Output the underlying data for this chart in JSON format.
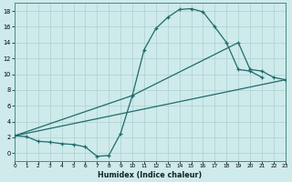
{
  "xlabel": "Humidex (Indice chaleur)",
  "bg_color": "#ceeaea",
  "line_color": "#1e6b6b",
  "grid_color": "#aed0d0",
  "xlim": [
    0,
    23
  ],
  "ylim": [
    -1,
    19
  ],
  "xticks": [
    0,
    1,
    2,
    3,
    4,
    5,
    6,
    7,
    8,
    9,
    10,
    11,
    12,
    13,
    14,
    15,
    16,
    17,
    18,
    19,
    20,
    21,
    22,
    23
  ],
  "yticks": [
    0,
    2,
    4,
    6,
    8,
    10,
    12,
    14,
    16,
    18
  ],
  "curve1_x": [
    0,
    1,
    2,
    3,
    4,
    5,
    6,
    7,
    8,
    9,
    10,
    11,
    12,
    13,
    14,
    15,
    16,
    17,
    18,
    19,
    20,
    21
  ],
  "curve1_y": [
    2.2,
    2.1,
    1.5,
    1.4,
    1.2,
    1.1,
    0.8,
    -0.4,
    -0.3,
    2.5,
    7.3,
    13.1,
    15.8,
    17.2,
    18.2,
    18.3,
    17.9,
    16.0,
    14.0,
    10.6,
    10.4,
    9.6
  ],
  "curve2_x": [
    0,
    10,
    19,
    20,
    21,
    22,
    23
  ],
  "curve2_y": [
    2.2,
    7.3,
    14.0,
    10.6,
    10.4,
    9.6,
    9.3
  ],
  "curve3_x": [
    0,
    23
  ],
  "curve3_y": [
    2.2,
    9.3
  ]
}
